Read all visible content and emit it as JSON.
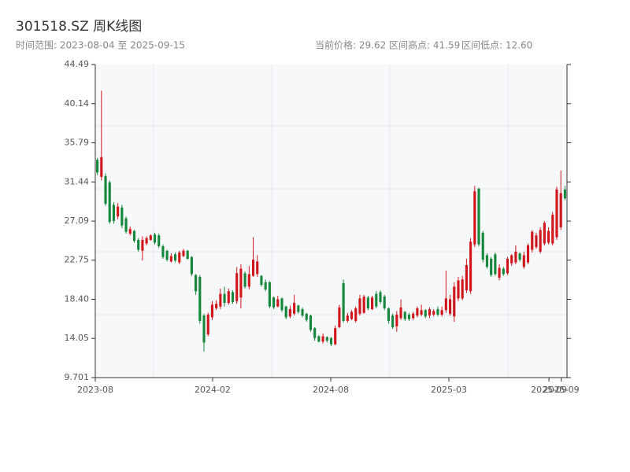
{
  "chart_data": {
    "type": "candlestick",
    "title": "301518.SZ 周K线图",
    "subtitle": "时间范围: 2023-08-04 至 2025-09-15",
    "stats": [
      "当前价格: 29.62",
      "区间高点: 41.59",
      "区间低点: 12.60"
    ],
    "up_color": "#d0161b",
    "down_color": "#14873a",
    "ohlc": [
      [
        33.9,
        34.1,
        32.2,
        32.5
      ],
      [
        32.0,
        41.59,
        31.6,
        34.2
      ],
      [
        32.1,
        32.4,
        28.8,
        29.0
      ],
      [
        31.4,
        31.6,
        26.8,
        27.0
      ],
      [
        28.9,
        29.2,
        26.8,
        27.1
      ],
      [
        27.6,
        29.1,
        27.3,
        28.7
      ],
      [
        28.6,
        28.9,
        26.3,
        26.6
      ],
      [
        27.4,
        27.6,
        25.7,
        25.9
      ],
      [
        25.7,
        26.5,
        25.5,
        26.2
      ],
      [
        26.0,
        26.1,
        24.7,
        24.9
      ],
      [
        25.0,
        25.2,
        23.7,
        23.9
      ],
      [
        23.8,
        25.4,
        22.7,
        25.0
      ],
      [
        24.6,
        25.4,
        24.4,
        25.2
      ],
      [
        25.0,
        25.6,
        24.9,
        25.5
      ],
      [
        25.6,
        25.8,
        24.5,
        24.7
      ],
      [
        25.5,
        25.7,
        24.1,
        24.3
      ],
      [
        24.3,
        24.5,
        22.9,
        23.1
      ],
      [
        23.8,
        23.9,
        22.6,
        22.8
      ],
      [
        22.6,
        23.5,
        22.5,
        23.2
      ],
      [
        23.4,
        23.6,
        22.5,
        22.7
      ],
      [
        22.5,
        23.8,
        22.3,
        23.6
      ],
      [
        23.2,
        24.0,
        23.1,
        23.8
      ],
      [
        23.8,
        23.9,
        22.8,
        22.9
      ],
      [
        23.1,
        23.2,
        21.0,
        21.2
      ],
      [
        21.1,
        21.2,
        18.9,
        19.3
      ],
      [
        20.9,
        21.1,
        15.7,
        16.0
      ],
      [
        16.6,
        16.8,
        12.6,
        13.6
      ],
      [
        14.5,
        16.9,
        14.3,
        16.7
      ],
      [
        16.4,
        18.2,
        16.1,
        17.8
      ],
      [
        17.4,
        18.3,
        17.2,
        17.9
      ],
      [
        17.6,
        19.6,
        17.3,
        19.0
      ],
      [
        19.0,
        19.8,
        17.6,
        18.0
      ],
      [
        18.0,
        19.6,
        17.8,
        19.3
      ],
      [
        19.2,
        19.4,
        17.9,
        18.1
      ],
      [
        18.2,
        22.0,
        17.9,
        21.3
      ],
      [
        18.6,
        22.3,
        17.4,
        21.8
      ],
      [
        21.3,
        21.5,
        19.6,
        19.8
      ],
      [
        19.8,
        22.1,
        19.5,
        21.2
      ],
      [
        21.0,
        25.3,
        20.9,
        22.8
      ],
      [
        21.2,
        23.3,
        20.9,
        22.6
      ],
      [
        21.0,
        21.1,
        19.8,
        20.0
      ],
      [
        20.3,
        20.6,
        19.3,
        19.5
      ],
      [
        20.3,
        20.4,
        17.4,
        17.6
      ],
      [
        18.6,
        18.7,
        17.3,
        17.5
      ],
      [
        17.6,
        18.8,
        17.5,
        18.4
      ],
      [
        18.5,
        18.6,
        17.0,
        17.2
      ],
      [
        17.6,
        17.7,
        16.2,
        16.4
      ],
      [
        16.5,
        17.7,
        16.3,
        17.3
      ],
      [
        16.8,
        18.9,
        16.6,
        18.0
      ],
      [
        17.7,
        17.8,
        16.8,
        17.0
      ],
      [
        17.3,
        17.5,
        16.4,
        16.6
      ],
      [
        16.8,
        16.9,
        15.9,
        16.1
      ],
      [
        16.6,
        16.7,
        14.8,
        15.0
      ],
      [
        15.2,
        15.3,
        13.8,
        14.1
      ],
      [
        14.3,
        14.4,
        13.6,
        13.7
      ],
      [
        13.7,
        14.6,
        13.5,
        14.3
      ],
      [
        14.2,
        14.3,
        13.6,
        13.8
      ],
      [
        14.1,
        14.2,
        13.2,
        13.4
      ],
      [
        13.4,
        15.5,
        13.3,
        15.2
      ],
      [
        15.3,
        17.8,
        15.2,
        17.5
      ],
      [
        20.2,
        20.6,
        15.8,
        16.0
      ],
      [
        16.0,
        16.9,
        15.8,
        16.6
      ],
      [
        16.2,
        17.2,
        16.1,
        17.0
      ],
      [
        16.0,
        17.6,
        15.8,
        17.4
      ],
      [
        16.8,
        18.9,
        16.6,
        18.5
      ],
      [
        16.9,
        18.9,
        16.8,
        18.7
      ],
      [
        18.6,
        18.8,
        17.2,
        17.4
      ],
      [
        17.3,
        18.8,
        17.2,
        18.6
      ],
      [
        19.0,
        19.3,
        17.4,
        17.6
      ],
      [
        19.2,
        19.4,
        17.9,
        18.1
      ],
      [
        18.7,
        18.9,
        17.2,
        17.4
      ],
      [
        17.4,
        17.5,
        15.7,
        16.0
      ],
      [
        16.6,
        16.8,
        15.1,
        15.3
      ],
      [
        15.4,
        17.1,
        14.8,
        16.7
      ],
      [
        16.3,
        18.4,
        16.1,
        17.5
      ],
      [
        17.0,
        17.1,
        16.0,
        16.2
      ],
      [
        16.7,
        16.9,
        16.0,
        16.2
      ],
      [
        16.3,
        17.0,
        16.1,
        16.8
      ],
      [
        16.6,
        17.6,
        16.4,
        17.4
      ],
      [
        16.7,
        17.8,
        16.5,
        17.2
      ],
      [
        17.2,
        17.3,
        16.3,
        16.5
      ],
      [
        16.6,
        17.5,
        16.3,
        17.3
      ],
      [
        16.7,
        17.3,
        16.5,
        17.1
      ],
      [
        17.3,
        17.6,
        16.5,
        16.7
      ],
      [
        16.7,
        17.6,
        16.5,
        17.2
      ],
      [
        17.2,
        21.6,
        16.9,
        18.5
      ],
      [
        16.8,
        18.9,
        16.6,
        18.4
      ],
      [
        16.5,
        20.3,
        15.9,
        19.8
      ],
      [
        18.5,
        20.9,
        18.2,
        20.5
      ],
      [
        18.5,
        21.0,
        18.3,
        20.6
      ],
      [
        19.4,
        22.9,
        19.1,
        22.2
      ],
      [
        19.3,
        25.2,
        19.0,
        24.8
      ],
      [
        24.5,
        31.0,
        24.2,
        30.4
      ],
      [
        30.7,
        30.8,
        24.3,
        24.5
      ],
      [
        25.8,
        26.0,
        22.5,
        22.8
      ],
      [
        23.3,
        23.5,
        21.8,
        22.0
      ],
      [
        22.9,
        23.1,
        20.9,
        21.1
      ],
      [
        23.4,
        23.6,
        21.0,
        21.2
      ],
      [
        20.8,
        22.3,
        20.5,
        21.9
      ],
      [
        21.8,
        22.0,
        21.0,
        21.2
      ],
      [
        21.3,
        23.1,
        21.1,
        22.9
      ],
      [
        22.4,
        23.4,
        22.1,
        23.3
      ],
      [
        22.5,
        24.4,
        22.3,
        23.7
      ],
      [
        23.5,
        23.6,
        22.6,
        22.8
      ],
      [
        22.0,
        23.7,
        21.8,
        23.3
      ],
      [
        22.5,
        24.6,
        22.3,
        24.4
      ],
      [
        23.9,
        26.1,
        23.6,
        25.9
      ],
      [
        24.2,
        25.8,
        24.0,
        25.5
      ],
      [
        23.7,
        26.4,
        23.5,
        26.1
      ],
      [
        24.6,
        27.1,
        24.4,
        26.9
      ],
      [
        24.7,
        26.4,
        24.5,
        26.0
      ],
      [
        24.6,
        28.1,
        24.4,
        27.8
      ],
      [
        25.3,
        30.9,
        25.0,
        30.6
      ],
      [
        26.4,
        32.7,
        26.1,
        30.2
      ],
      [
        30.6,
        31.0,
        29.4,
        29.62
      ]
    ],
    "xlim": [
      0,
      115
    ],
    "xticks": [
      {
        "value": 0,
        "label": "2023-08"
      },
      {
        "value": 28.6,
        "label": "2024-02"
      },
      {
        "value": 57.4,
        "label": "2024-08"
      },
      {
        "value": 86.2,
        "label": "2025-03"
      },
      {
        "value": 110.6,
        "label": "2025-09"
      },
      {
        "value": 113.6,
        "label": "2025-09"
      }
    ],
    "ylim": [
      9.701,
      44.49
    ],
    "yticks": [
      9.701,
      14.05,
      {
        "value": 18.4,
        "label": "18.40"
      },
      22.75,
      27.09,
      31.44,
      35.79,
      40.14,
      44.49
    ]
  }
}
